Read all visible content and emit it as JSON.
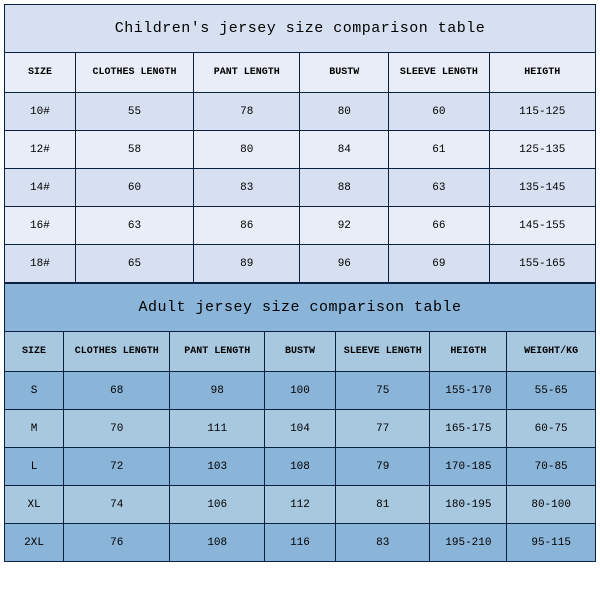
{
  "children_table": {
    "title": "Children's jersey size comparison table",
    "title_bg": "#d6e0f0",
    "header_bg": "#e8edf7",
    "row_bg_even": "#d6e0f0",
    "row_bg_odd": "#e8edf7",
    "border_color": "#0a2040",
    "columns": [
      "SIZE",
      "CLOTHES LENGTH",
      "PANT LENGTH",
      "BUSTW",
      "SLEEVE LENGTH",
      "HEIGTH"
    ],
    "col_widths": [
      "12%",
      "20%",
      "18%",
      "15%",
      "17%",
      "18%"
    ],
    "rows": [
      [
        "10#",
        "55",
        "78",
        "80",
        "60",
        "115-125"
      ],
      [
        "12#",
        "58",
        "80",
        "84",
        "61",
        "125-135"
      ],
      [
        "14#",
        "60",
        "83",
        "88",
        "63",
        "135-145"
      ],
      [
        "16#",
        "63",
        "86",
        "92",
        "66",
        "145-155"
      ],
      [
        "18#",
        "65",
        "89",
        "96",
        "69",
        "155-165"
      ]
    ]
  },
  "adult_table": {
    "title": "Adult jersey size comparison table",
    "title_bg": "#8ab4d8",
    "header_bg": "#a8c8e0",
    "row_bg_even": "#8ab4d8",
    "row_bg_odd": "#a8c8e0",
    "border_color": "#0a2040",
    "columns": [
      "SIZE",
      "CLOTHES LENGTH",
      "PANT LENGTH",
      "BUSTW",
      "SLEEVE LENGTH",
      "HEIGTH",
      "WEIGHT/KG"
    ],
    "col_widths": [
      "10%",
      "18%",
      "16%",
      "12%",
      "16%",
      "13%",
      "15%"
    ],
    "rows": [
      [
        "S",
        "68",
        "98",
        "100",
        "75",
        "155-170",
        "55-65"
      ],
      [
        "M",
        "70",
        "111",
        "104",
        "77",
        "165-175",
        "60-75"
      ],
      [
        "L",
        "72",
        "103",
        "108",
        "79",
        "170-185",
        "70-85"
      ],
      [
        "XL",
        "74",
        "106",
        "112",
        "81",
        "180-195",
        "80-100"
      ],
      [
        "2XL",
        "76",
        "108",
        "116",
        "83",
        "195-210",
        "95-115"
      ]
    ]
  }
}
